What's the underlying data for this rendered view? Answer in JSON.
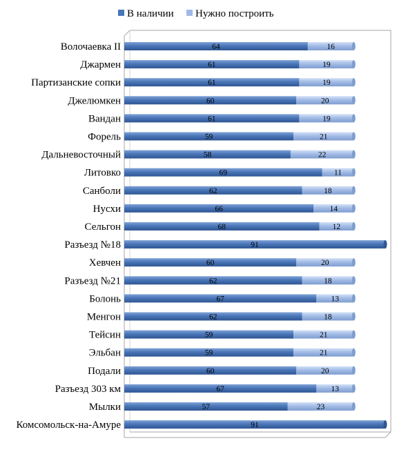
{
  "chart_data": {
    "type": "bar",
    "orientation": "horizontal",
    "stacked": true,
    "categories": [
      "Волочаевка II",
      "Джармен",
      "Партизанские сопки",
      "Джелюмкен",
      "Вандан",
      "Форель",
      "Дальневосточный",
      "Литовко",
      "Санболи",
      "Нусхи",
      "Сельгон",
      "Разъезд №18",
      "Хевчен",
      "Разъезд №21",
      "Болонь",
      "Менгон",
      "Тейсин",
      "Эльбан",
      "Подали",
      "Разъезд 303 км",
      "Мылки",
      "Комсомольск-на-Амуре"
    ],
    "series": [
      {
        "name": "В наличии",
        "color": "#4a76b8",
        "values": [
          64,
          61,
          61,
          60,
          61,
          59,
          58,
          69,
          62,
          66,
          68,
          91,
          60,
          62,
          67,
          62,
          59,
          59,
          60,
          67,
          57,
          91
        ]
      },
      {
        "name": "Нужно построить",
        "color": "#9fb9e6",
        "values": [
          16,
          19,
          19,
          20,
          19,
          21,
          22,
          11,
          18,
          14,
          12,
          0,
          20,
          18,
          13,
          18,
          21,
          21,
          20,
          13,
          23,
          0
        ]
      }
    ],
    "xlim": [
      0,
      91
    ],
    "legend_position": "top",
    "grid": false,
    "title": "",
    "xlabel": "",
    "ylabel": ""
  }
}
